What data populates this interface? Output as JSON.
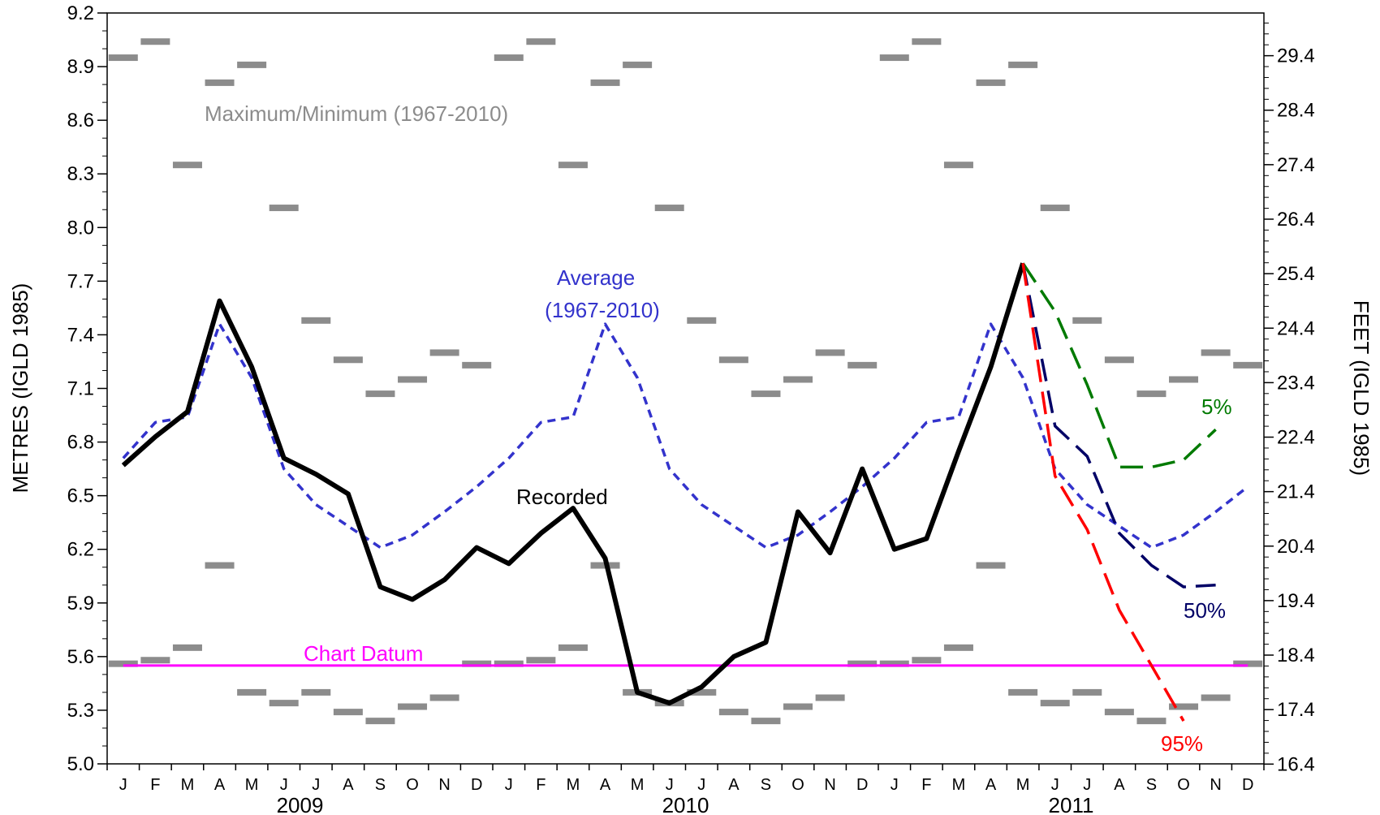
{
  "chart_data": {
    "type": "line",
    "ylabel_left": "METRES (IGLD 1985)",
    "ylabel_right": "FEET (IGLD 1985)",
    "ylim_m": [
      5.0,
      9.2
    ],
    "y_ticks_m": [
      5.0,
      5.3,
      5.6,
      5.9,
      6.2,
      6.5,
      6.8,
      7.1,
      7.4,
      7.7,
      8.0,
      8.3,
      8.6,
      8.9,
      9.2
    ],
    "y_ticks_ft": [
      16.4,
      17.4,
      18.4,
      19.4,
      20.4,
      21.4,
      22.4,
      23.4,
      24.4,
      25.4,
      26.4,
      27.4,
      28.4,
      29.4
    ],
    "months": [
      "J",
      "F",
      "M",
      "A",
      "M",
      "J",
      "J",
      "A",
      "S",
      "O",
      "N",
      "D",
      "J",
      "F",
      "M",
      "A",
      "M",
      "J",
      "J",
      "A",
      "S",
      "O",
      "N",
      "D",
      "J",
      "F",
      "M",
      "A",
      "M",
      "J",
      "J",
      "A",
      "S",
      "O",
      "N",
      "D"
    ],
    "years": [
      "2009",
      "2010",
      "2011"
    ],
    "grid": false,
    "colors": {
      "recorded": "#000000",
      "average": "#3333cc",
      "maxmin": "#8c8c8c",
      "chart_datum": "#ff00ff",
      "p5": "#007a00",
      "p50": "#000066",
      "p95": "#ff0000"
    },
    "annotations": {
      "maxmin": "Maximum/Minimum (1967-2010)",
      "average_line1": "Average",
      "average_line2": "(1967-2010)",
      "recorded": "Recorded",
      "chart_datum": "Chart Datum",
      "p5": "5%",
      "p50": "50%",
      "p95": "95%"
    },
    "maximum_monthly": [
      8.95,
      9.04,
      8.35,
      8.81,
      8.91,
      8.11,
      7.48,
      7.26,
      7.07,
      7.15,
      7.3,
      7.23
    ],
    "minimum_monthly": [
      5.56,
      5.58,
      5.65,
      6.11,
      5.4,
      5.34,
      5.4,
      5.29,
      5.24,
      5.32,
      5.37,
      5.56
    ],
    "average_monthly": [
      6.71,
      6.91,
      6.94,
      7.46,
      7.16,
      6.65,
      6.45,
      6.33,
      6.21,
      6.28,
      6.41,
      6.55
    ],
    "chart_datum_m": 5.55,
    "recorded": [
      6.67,
      6.83,
      6.97,
      7.59,
      7.22,
      6.71,
      6.62,
      6.51,
      5.99,
      5.92,
      6.03,
      6.21,
      6.12,
      6.29,
      6.43,
      6.15,
      5.4,
      5.34,
      5.43,
      5.6,
      5.68,
      6.41,
      6.18,
      6.65,
      6.2,
      6.26,
      6.75,
      7.22,
      7.8
    ],
    "forecast_start_index": 28,
    "forecast_5": [
      7.8,
      7.53,
      7.12,
      6.66,
      6.66,
      6.7,
      6.87
    ],
    "forecast_50": [
      7.8,
      6.89,
      6.72,
      6.29,
      6.11,
      5.99,
      6.0
    ],
    "forecast_95": [
      7.8,
      6.61,
      6.31,
      5.86,
      5.55,
      5.24
    ]
  }
}
